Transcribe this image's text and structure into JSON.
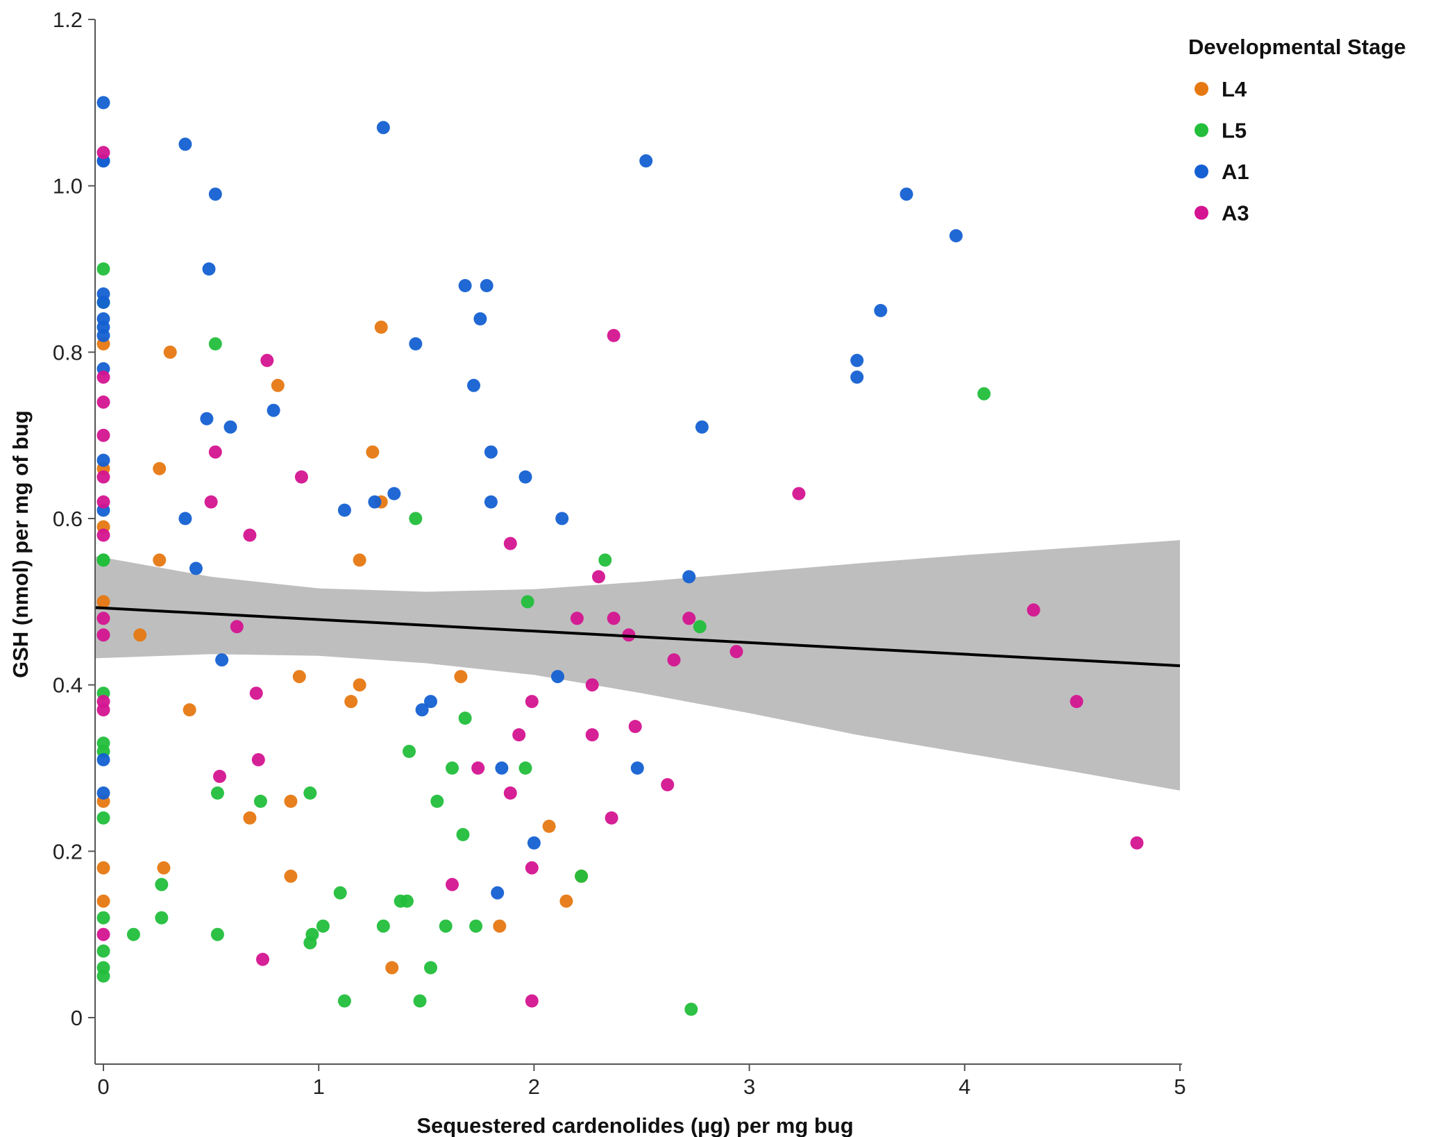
{
  "chart_data": {
    "type": "scatter",
    "xlabel": "Sequestered cardenolides (µg) per mg bug",
    "ylabel": "GSH (nmol) per mg of bug",
    "xlim": [
      -0.04,
      5
    ],
    "ylim": [
      -0.06,
      1.2
    ],
    "xticks": [
      "0",
      "1",
      "2",
      "3",
      "4",
      "5"
    ],
    "yticks": [
      "0",
      "0.2",
      "0.4",
      "0.6",
      "0.8",
      "1.0",
      "1.2"
    ],
    "grid": false,
    "legend": {
      "title": "Developmental Stage",
      "position": "right"
    },
    "series": [
      {
        "name": "L4",
        "color": "#E67812",
        "points": [
          [
            0,
            0.81
          ],
          [
            0,
            0.66
          ],
          [
            0,
            0.59
          ],
          [
            0,
            0.5
          ],
          [
            0,
            0.26
          ],
          [
            0,
            0.18
          ],
          [
            0,
            0.14
          ],
          [
            0.17,
            0.46
          ],
          [
            0.26,
            0.66
          ],
          [
            0.26,
            0.55
          ],
          [
            0.28,
            0.18
          ],
          [
            0.31,
            0.8
          ],
          [
            0.4,
            0.37
          ],
          [
            0.68,
            0.24
          ],
          [
            0.81,
            0.76
          ],
          [
            0.87,
            0.26
          ],
          [
            0.87,
            0.17
          ],
          [
            0.91,
            0.41
          ],
          [
            1.15,
            0.38
          ],
          [
            1.19,
            0.55
          ],
          [
            1.19,
            0.4
          ],
          [
            1.25,
            0.68
          ],
          [
            1.29,
            0.83
          ],
          [
            1.29,
            0.62
          ],
          [
            1.34,
            0.06
          ],
          [
            1.66,
            0.41
          ],
          [
            1.84,
            0.11
          ],
          [
            2.07,
            0.23
          ],
          [
            2.15,
            0.14
          ],
          [
            2.22,
            0.17
          ]
        ]
      },
      {
        "name": "L5",
        "color": "#22BE3C",
        "points": [
          [
            0,
            0.9
          ],
          [
            0,
            0.86
          ],
          [
            0,
            0.55
          ],
          [
            0,
            0.55
          ],
          [
            0,
            0.39
          ],
          [
            0,
            0.33
          ],
          [
            0,
            0.32
          ],
          [
            0,
            0.24
          ],
          [
            0,
            0.12
          ],
          [
            0,
            0.08
          ],
          [
            0,
            0.06
          ],
          [
            0,
            0.05
          ],
          [
            0.14,
            0.1
          ],
          [
            0.27,
            0.16
          ],
          [
            0.27,
            0.12
          ],
          [
            0.52,
            0.81
          ],
          [
            0.53,
            0.27
          ],
          [
            0.53,
            0.1
          ],
          [
            0.73,
            0.26
          ],
          [
            0.96,
            0.27
          ],
          [
            0.96,
            0.09
          ],
          [
            0.97,
            0.1
          ],
          [
            1.02,
            0.11
          ],
          [
            1.1,
            0.15
          ],
          [
            1.12,
            0.02
          ],
          [
            1.3,
            0.11
          ],
          [
            1.38,
            0.14
          ],
          [
            1.41,
            0.14
          ],
          [
            1.42,
            0.32
          ],
          [
            1.45,
            0.6
          ],
          [
            1.47,
            0.02
          ],
          [
            1.52,
            0.06
          ],
          [
            1.55,
            0.26
          ],
          [
            1.59,
            0.11
          ],
          [
            1.62,
            0.3
          ],
          [
            1.67,
            0.22
          ],
          [
            1.68,
            0.36
          ],
          [
            1.73,
            0.11
          ],
          [
            1.96,
            0.3
          ],
          [
            1.97,
            0.5
          ],
          [
            2.22,
            0.17
          ],
          [
            2.33,
            0.55
          ],
          [
            2.73,
            0.01
          ],
          [
            2.77,
            0.47
          ],
          [
            4.09,
            0.75
          ]
        ]
      },
      {
        "name": "A1",
        "color": "#1460D2",
        "points": [
          [
            0,
            1.1
          ],
          [
            0,
            1.03
          ],
          [
            0,
            1.03
          ],
          [
            0,
            0.87
          ],
          [
            0,
            0.86
          ],
          [
            0,
            0.84
          ],
          [
            0,
            0.83
          ],
          [
            0,
            0.82
          ],
          [
            0,
            0.78
          ],
          [
            0,
            0.67
          ],
          [
            0,
            0.61
          ],
          [
            0,
            0.31
          ],
          [
            0,
            0.27
          ],
          [
            0.38,
            1.05
          ],
          [
            0.38,
            0.6
          ],
          [
            0.43,
            0.54
          ],
          [
            0.48,
            0.72
          ],
          [
            0.49,
            0.9
          ],
          [
            0.52,
            0.99
          ],
          [
            0.55,
            0.43
          ],
          [
            0.59,
            0.71
          ],
          [
            0.79,
            0.73
          ],
          [
            1.12,
            0.61
          ],
          [
            1.26,
            0.62
          ],
          [
            1.3,
            1.07
          ],
          [
            1.35,
            0.63
          ],
          [
            1.45,
            0.81
          ],
          [
            1.48,
            0.37
          ],
          [
            1.52,
            0.38
          ],
          [
            1.68,
            0.88
          ],
          [
            1.72,
            0.76
          ],
          [
            1.75,
            0.84
          ],
          [
            1.78,
            0.88
          ],
          [
            1.8,
            0.68
          ],
          [
            1.8,
            0.62
          ],
          [
            1.83,
            0.15
          ],
          [
            1.85,
            0.3
          ],
          [
            1.96,
            0.65
          ],
          [
            2.0,
            0.21
          ],
          [
            2.11,
            0.41
          ],
          [
            2.13,
            0.6
          ],
          [
            2.48,
            0.3
          ],
          [
            2.52,
            1.03
          ],
          [
            2.72,
            0.53
          ],
          [
            2.78,
            0.71
          ],
          [
            3.5,
            0.79
          ],
          [
            3.5,
            0.77
          ],
          [
            3.61,
            0.85
          ],
          [
            3.73,
            0.99
          ],
          [
            3.96,
            0.94
          ]
        ]
      },
      {
        "name": "A3",
        "color": "#D41490",
        "points": [
          [
            0,
            1.04
          ],
          [
            0,
            0.77
          ],
          [
            0,
            0.74
          ],
          [
            0,
            0.7
          ],
          [
            0,
            0.65
          ],
          [
            0,
            0.62
          ],
          [
            0,
            0.58
          ],
          [
            0,
            0.48
          ],
          [
            0,
            0.46
          ],
          [
            0,
            0.38
          ],
          [
            0,
            0.37
          ],
          [
            0,
            0.1
          ],
          [
            0.5,
            0.62
          ],
          [
            0.52,
            0.68
          ],
          [
            0.54,
            0.29
          ],
          [
            0.62,
            0.47
          ],
          [
            0.68,
            0.58
          ],
          [
            0.71,
            0.39
          ],
          [
            0.72,
            0.31
          ],
          [
            0.74,
            0.07
          ],
          [
            0.76,
            0.79
          ],
          [
            0.92,
            0.65
          ],
          [
            1.62,
            0.16
          ],
          [
            1.74,
            0.3
          ],
          [
            1.89,
            0.27
          ],
          [
            1.89,
            0.57
          ],
          [
            1.93,
            0.34
          ],
          [
            1.99,
            0.38
          ],
          [
            1.99,
            0.18
          ],
          [
            1.99,
            0.02
          ],
          [
            2.2,
            0.48
          ],
          [
            2.27,
            0.4
          ],
          [
            2.27,
            0.34
          ],
          [
            2.3,
            0.53
          ],
          [
            2.36,
            0.24
          ],
          [
            2.37,
            0.82
          ],
          [
            2.37,
            0.48
          ],
          [
            2.44,
            0.46
          ],
          [
            2.47,
            0.35
          ],
          [
            2.62,
            0.28
          ],
          [
            2.65,
            0.43
          ],
          [
            2.72,
            0.48
          ],
          [
            2.94,
            0.44
          ],
          [
            3.23,
            0.63
          ],
          [
            4.32,
            0.49
          ],
          [
            4.52,
            0.38
          ],
          [
            4.8,
            0.21
          ]
        ]
      }
    ],
    "trend": {
      "line": [
        [
          -0.04,
          0.493
        ],
        [
          5,
          0.423
        ]
      ],
      "ci_upper": [
        [
          -0.04,
          0.555
        ],
        [
          0.5,
          0.53
        ],
        [
          1,
          0.516
        ],
        [
          1.5,
          0.512
        ],
        [
          2,
          0.515
        ],
        [
          2.5,
          0.524
        ],
        [
          3,
          0.535
        ],
        [
          3.5,
          0.546
        ],
        [
          4,
          0.556
        ],
        [
          4.5,
          0.565
        ],
        [
          5,
          0.574
        ]
      ],
      "ci_lower": [
        [
          -0.04,
          0.432
        ],
        [
          0.5,
          0.437
        ],
        [
          1,
          0.435
        ],
        [
          1.5,
          0.426
        ],
        [
          2,
          0.412
        ],
        [
          2.5,
          0.39
        ],
        [
          3,
          0.366
        ],
        [
          3.5,
          0.34
        ],
        [
          4,
          0.318
        ],
        [
          4.5,
          0.296
        ],
        [
          5,
          0.273
        ]
      ],
      "line_color": "#000000",
      "band_color": "#BEBEBE"
    }
  }
}
